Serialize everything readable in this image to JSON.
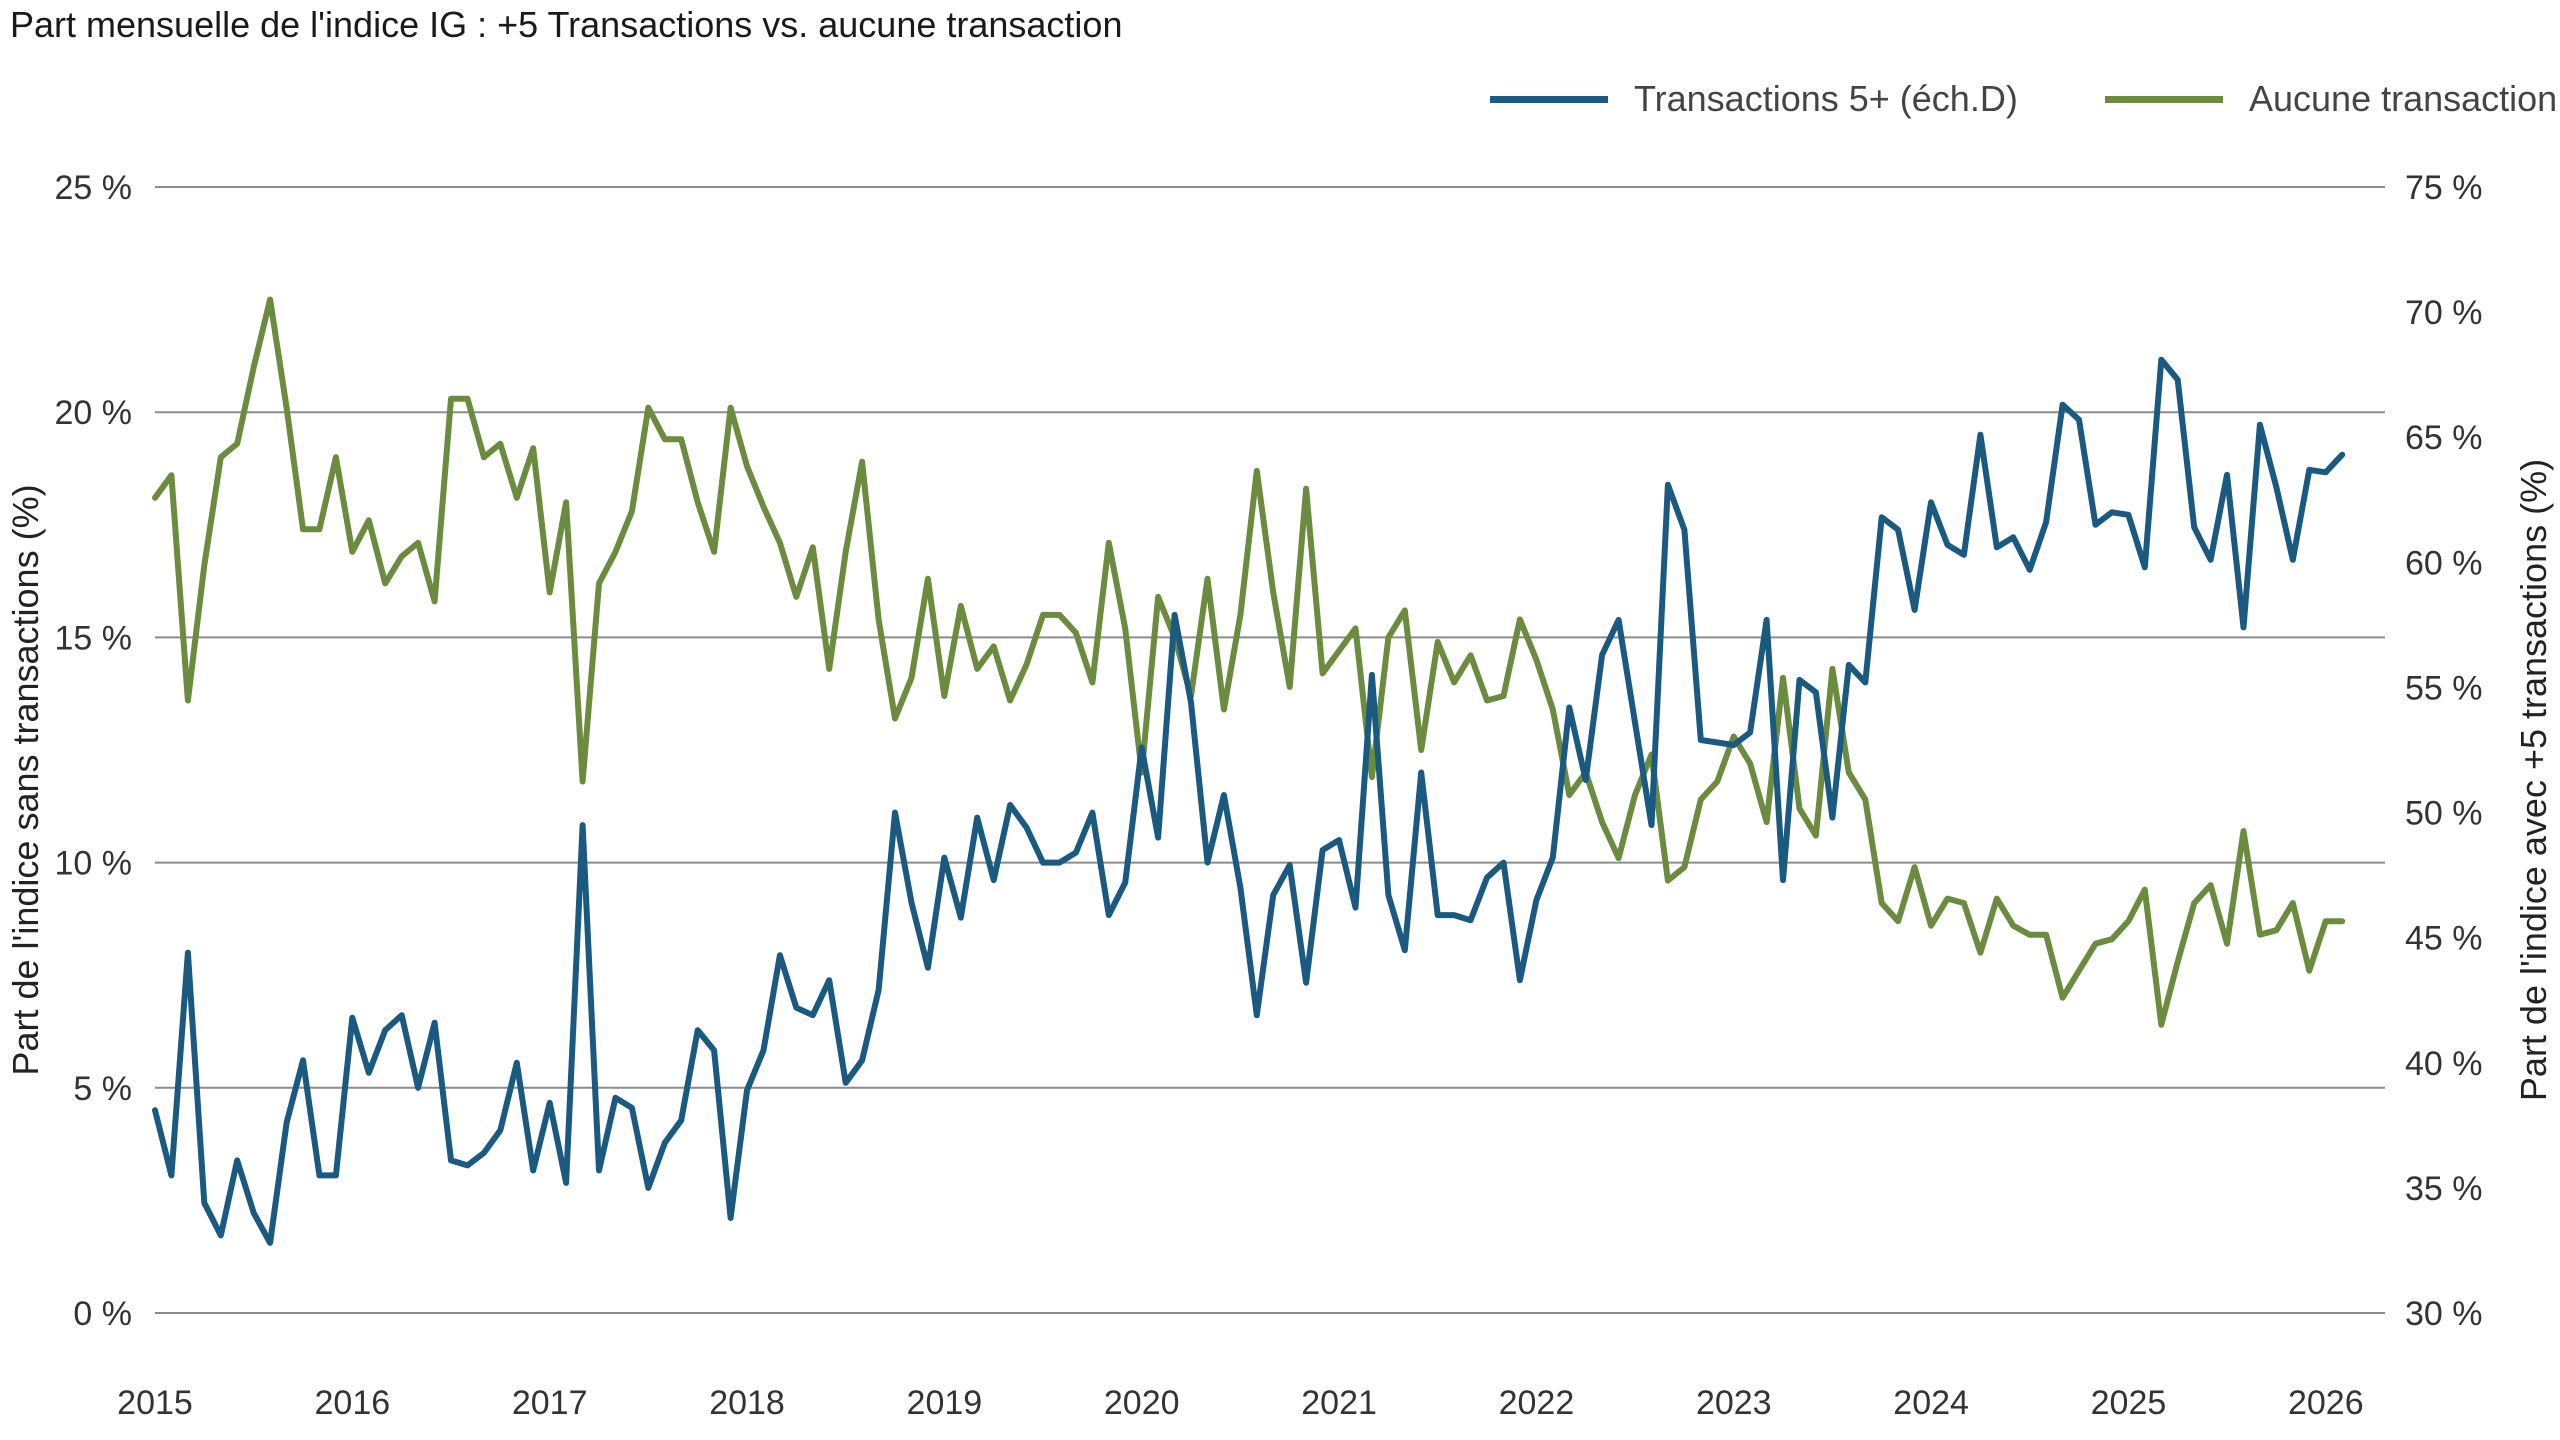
{
  "chart_data": {
    "type": "line",
    "title": "Part mensuelle de l'indice IG : +5 Transactions vs. aucune transaction",
    "ylabel_left": "Part de l'indice sans transactions (%)",
    "ylabel_right": "Part de l'indice avec +5 transactions (%)",
    "ylim_left": [
      0,
      25
    ],
    "ylim_right": [
      30,
      75
    ],
    "yticks_left": [
      "0 %",
      "5 %",
      "10 %",
      "15 %",
      "20 %",
      "25 %"
    ],
    "yticks_right": [
      "30 %",
      "35 %",
      "40 %",
      "45 %",
      "50 %",
      "55 %",
      "60 %",
      "65 %",
      "70 %",
      "75 %"
    ],
    "xticks": [
      "2015",
      "2016",
      "2017",
      "2018",
      "2019",
      "2020",
      "2021",
      "2022",
      "2023",
      "2024",
      "2025",
      "2026"
    ],
    "xlim": [
      2015.0,
      2026.3
    ],
    "grid": true,
    "legend_position": "top-right",
    "series": [
      {
        "name": "Transactions 5+ (éch.D)",
        "axis": "right",
        "color": "#1b5a80",
        "x_start": 2015.0,
        "step": 0.08333,
        "values": [
          38.1,
          35.5,
          44.4,
          34.4,
          33.1,
          36.1,
          34.0,
          32.8,
          37.6,
          40.1,
          35.5,
          35.5,
          41.8,
          39.6,
          41.3,
          41.9,
          39.0,
          41.6,
          36.1,
          35.9,
          36.4,
          37.3,
          40.0,
          35.7,
          38.4,
          35.2,
          49.5,
          35.7,
          38.6,
          38.2,
          35.0,
          36.8,
          37.7,
          41.3,
          40.5,
          33.8,
          38.9,
          40.5,
          44.3,
          42.2,
          41.9,
          43.3,
          39.2,
          40.1,
          42.9,
          50.0,
          46.4,
          43.8,
          48.2,
          45.8,
          49.8,
          47.3,
          50.3,
          49.4,
          48.0,
          48.0,
          48.4,
          50.0,
          45.9,
          47.2,
          52.6,
          49.0,
          57.9,
          54.4,
          48.0,
          50.7,
          47.0,
          41.9,
          46.7,
          47.9,
          43.2,
          48.5,
          48.9,
          46.2,
          55.5,
          46.7,
          44.5,
          51.6,
          45.9,
          45.9,
          45.7,
          47.4,
          48.0,
          43.3,
          46.5,
          48.2,
          54.2,
          51.3,
          56.3,
          57.7,
          53.6,
          49.5,
          63.1,
          61.3,
          52.9,
          52.8,
          52.7,
          53.2,
          57.7,
          47.3,
          55.3,
          54.8,
          49.8,
          55.9,
          55.2,
          61.8,
          61.3,
          58.1,
          62.4,
          60.7,
          60.3,
          65.1,
          60.6,
          61.0,
          59.7,
          61.6,
          66.3,
          65.7,
          61.5,
          62.0,
          61.9,
          59.8,
          68.1,
          67.3,
          61.4,
          60.1,
          63.5,
          57.4,
          65.5,
          63.0,
          60.1,
          63.7,
          63.6,
          64.3
        ]
      },
      {
        "name": "Aucune transaction",
        "axis": "left",
        "color": "#6b8c3e",
        "x_start": 2015.0,
        "step": 0.08333,
        "values": [
          18.1,
          18.6,
          13.6,
          16.6,
          19.0,
          19.3,
          21.0,
          22.5,
          20.1,
          17.4,
          17.4,
          19.0,
          16.9,
          17.6,
          16.2,
          16.8,
          17.1,
          15.8,
          20.3,
          20.3,
          19.0,
          19.3,
          18.1,
          19.2,
          16.0,
          18.0,
          11.8,
          16.2,
          16.9,
          17.8,
          20.1,
          19.4,
          19.4,
          18.0,
          16.9,
          20.1,
          18.8,
          17.9,
          17.1,
          15.9,
          17.0,
          14.3,
          16.9,
          18.9,
          15.4,
          13.2,
          14.1,
          16.3,
          13.7,
          15.7,
          14.3,
          14.8,
          13.6,
          14.4,
          15.5,
          15.5,
          15.1,
          14.0,
          17.1,
          15.2,
          12.0,
          15.9,
          15.0,
          13.7,
          16.3,
          13.4,
          15.5,
          18.7,
          16.0,
          13.9,
          18.3,
          14.2,
          14.7,
          15.2,
          11.9,
          15.0,
          15.6,
          12.5,
          14.9,
          14.0,
          14.6,
          13.6,
          13.7,
          15.4,
          14.5,
          13.4,
          11.5,
          12.0,
          10.9,
          10.1,
          11.5,
          12.4,
          9.6,
          9.9,
          11.4,
          11.8,
          12.8,
          12.2,
          10.9,
          14.1,
          11.2,
          10.6,
          14.3,
          12.0,
          11.4,
          9.1,
          8.7,
          9.9,
          8.6,
          9.2,
          9.1,
          8.0,
          9.2,
          8.6,
          8.4,
          8.4,
          7.0,
          7.6,
          8.2,
          8.3,
          8.7,
          9.4,
          6.4,
          7.8,
          9.1,
          9.5,
          8.2,
          10.7,
          8.4,
          8.5,
          9.1,
          7.6,
          8.7,
          8.7
        ]
      }
    ]
  }
}
